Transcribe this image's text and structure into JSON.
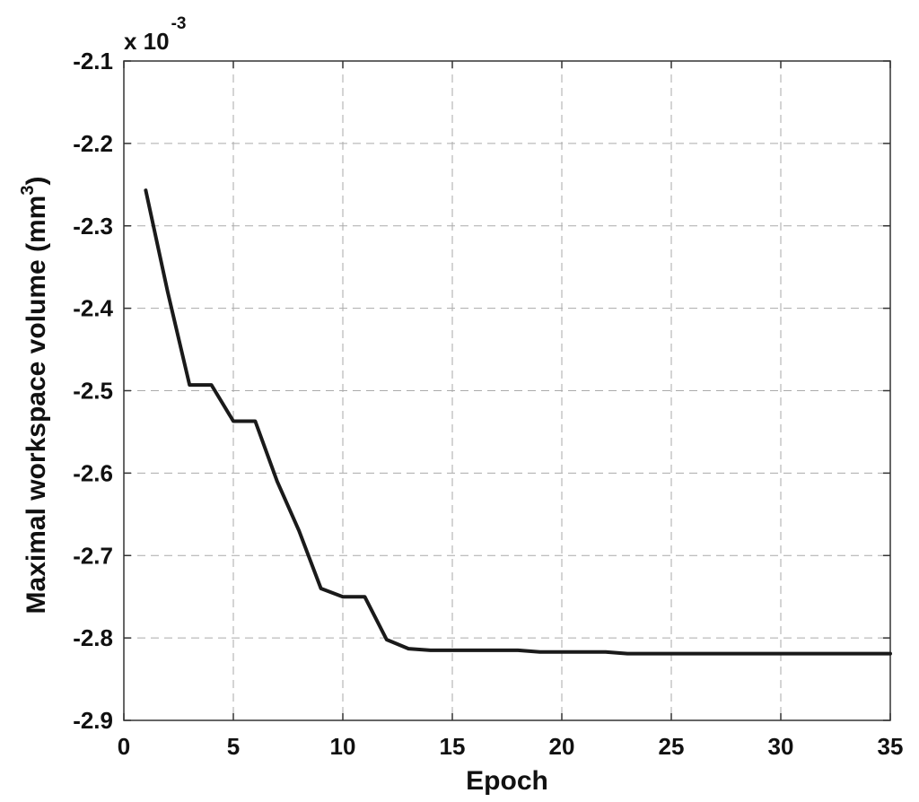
{
  "chart_data": {
    "type": "line",
    "title": "",
    "xlabel": "Epoch",
    "ylabel": "Maximal workspace volume (mm",
    "ylabel_superscript": "3",
    "ylabel_close": ")",
    "exponent_base": "x 10",
    "exponent_power": "-3",
    "xlim": [
      0,
      35
    ],
    "ylim": [
      -2.9,
      -2.1
    ],
    "xticks": [
      "0",
      "5",
      "10",
      "15",
      "20",
      "25",
      "30",
      "35"
    ],
    "yticks": [
      "-2.1",
      "-2.2",
      "-2.3",
      "-2.4",
      "-2.5",
      "-2.6",
      "-2.7",
      "-2.8",
      "-2.9"
    ],
    "grid": true,
    "line_color": "#1a1a1a",
    "series": [
      {
        "x": [
          1,
          2,
          3,
          4,
          5,
          6,
          7,
          8,
          9,
          10,
          11,
          12,
          13,
          14,
          15,
          16,
          17,
          18,
          19,
          20,
          21,
          22,
          23,
          24,
          25,
          26,
          27,
          28,
          29,
          30,
          31,
          32,
          33,
          34,
          35
        ],
        "values": [
          -2.257,
          -2.38,
          -2.493,
          -2.493,
          -2.537,
          -2.537,
          -2.61,
          -2.67,
          -2.74,
          -2.75,
          -2.75,
          -2.802,
          -2.813,
          -2.815,
          -2.815,
          -2.815,
          -2.815,
          -2.815,
          -2.817,
          -2.817,
          -2.817,
          -2.817,
          -2.819,
          -2.819,
          -2.819,
          -2.819,
          -2.819,
          -2.819,
          -2.819,
          -2.819,
          -2.819,
          -2.819,
          -2.819,
          -2.819,
          -2.819
        ]
      }
    ]
  }
}
